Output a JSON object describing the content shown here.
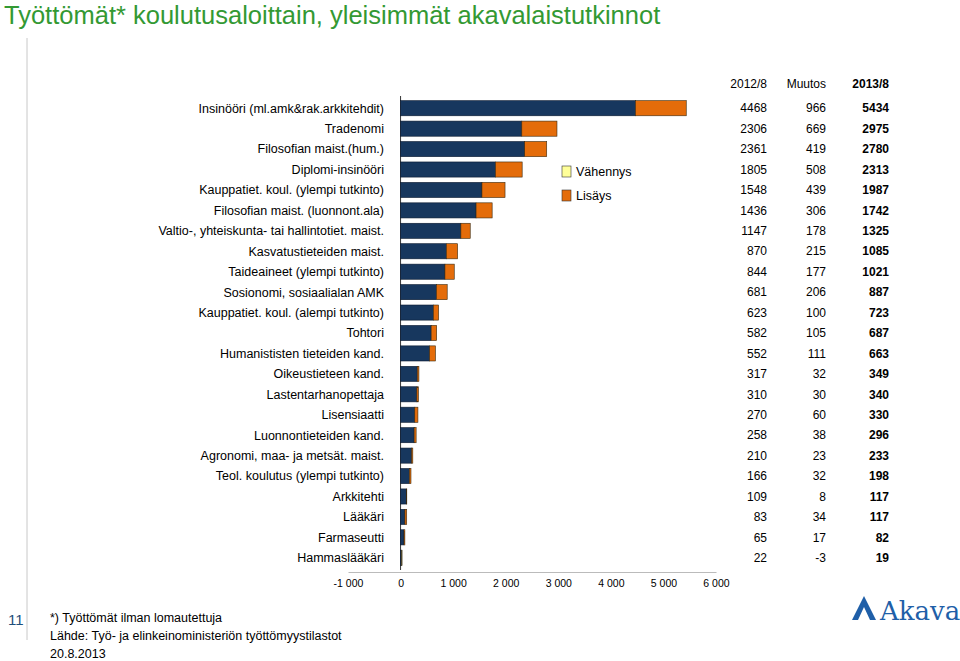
{
  "chart_data": {
    "type": "bar",
    "orientation": "horizontal",
    "stacked": true,
    "grid": false,
    "title": "Työttömät* koulutusaloittain, yleisimmät akavalaistutkinnot",
    "categories": [
      "Insinööri (ml.amk&rak.arkkitehdit)",
      "Tradenomi",
      "Filosofian maist.(hum.)",
      "Diplomi-insinööri",
      "Kauppatiet. koul. (ylempi tutkinto)",
      "Filosofian maist. (luonnont.ala)",
      "Valtio-, yhteiskunta- tai hallintotiet. maist.",
      "Kasvatustieteiden maist.",
      "Taideaineet (ylempi tutkinto)",
      "Sosionomi, sosiaalialan AMK",
      "Kauppatiet. koul. (alempi tutkinto)",
      "Tohtori",
      "Humanististen tieteiden kand.",
      "Oikeustieteen kand.",
      "Lastentarhanopettaja",
      "Lisensiaatti",
      "Luonnontieteiden kand.",
      "Agronomi, maa- ja metsät. maist.",
      "Teol. koulutus (ylempi tutkinto)",
      "Arkkitehti",
      "Lääkäri",
      "Farmaseutti",
      "Hammaslääkäri"
    ],
    "series": [
      {
        "name": "2012/8",
        "color": "#17375e",
        "values": [
          4468,
          2306,
          2361,
          1805,
          1548,
          1436,
          1147,
          870,
          844,
          681,
          623,
          582,
          552,
          317,
          310,
          270,
          258,
          210,
          166,
          109,
          83,
          65,
          22
        ]
      },
      {
        "name": "Vähennys",
        "color": "#ffff99",
        "values": [
          null,
          null,
          null,
          null,
          null,
          null,
          null,
          null,
          null,
          null,
          null,
          null,
          null,
          null,
          null,
          null,
          null,
          null,
          null,
          null,
          null,
          null,
          -3
        ]
      },
      {
        "name": "Lisäys",
        "color": "#e46c0a",
        "values": [
          966,
          669,
          419,
          508,
          439,
          306,
          178,
          215,
          177,
          206,
          100,
          105,
          111,
          32,
          30,
          60,
          38,
          23,
          32,
          8,
          34,
          17,
          null
        ]
      }
    ],
    "xlim": [
      -1000,
      6000
    ],
    "xticks": [
      {
        "value": -1000,
        "label": "-1 000"
      },
      0,
      {
        "value": 1000,
        "label": "1 000"
      },
      {
        "value": 2000,
        "label": "2 000"
      },
      {
        "value": 3000,
        "label": "3 000"
      },
      {
        "value": 4000,
        "label": "4 000"
      },
      {
        "value": 5000,
        "label": "5 000"
      },
      {
        "value": 6000,
        "label": "6 000"
      }
    ]
  },
  "table": {
    "columns": [
      "Muutos",
      "2013/8"
    ],
    "rows": [
      [
        966,
        5434
      ],
      [
        669,
        2975
      ],
      [
        419,
        2780
      ],
      [
        508,
        2313
      ],
      [
        439,
        1987
      ],
      [
        306,
        1742
      ],
      [
        178,
        1325
      ],
      [
        215,
        1085
      ],
      [
        177,
        1021
      ],
      [
        206,
        887
      ],
      [
        100,
        723
      ],
      [
        105,
        687
      ],
      [
        111,
        663
      ],
      [
        32,
        349
      ],
      [
        30,
        340
      ],
      [
        60,
        330
      ],
      [
        38,
        296
      ],
      [
        23,
        233
      ],
      [
        32,
        198
      ],
      [
        8,
        117
      ],
      [
        34,
        117
      ],
      [
        17,
        82
      ],
      [
        -3,
        19
      ]
    ]
  },
  "footnote": "*) Työttömät ilman lomautettuja",
  "source": "Lähde: Työ- ja elinkeinoministeriön työttömyystilastot",
  "date": "20.8.2013",
  "page_number": 11,
  "logo": "Akava"
}
